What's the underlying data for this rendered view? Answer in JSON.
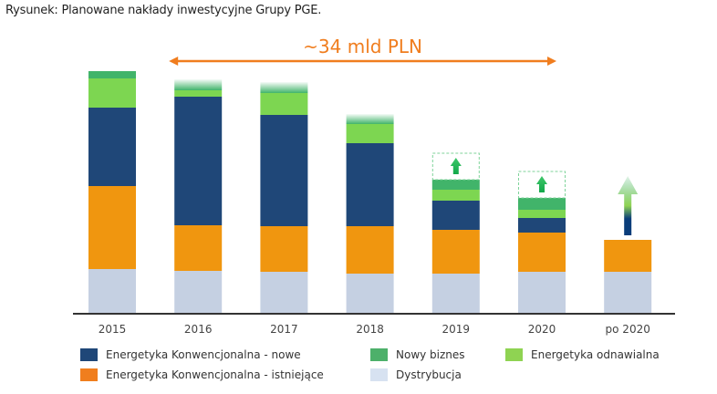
{
  "caption": "Rysunek: Planowane nakłady inwestycyjne Grupy PGE.",
  "chart_data": {
    "type": "bar",
    "stacked": true,
    "title": "Rysunek: Planowane nakłady inwestycyjne Grupy PGE.",
    "annotation": {
      "text": "~34 mld PLN",
      "spans": [
        "2016",
        "2020"
      ],
      "color": "#f07d1e"
    },
    "categories": [
      "2015",
      "2016",
      "2017",
      "2018",
      "2019",
      "2020",
      "po 2020"
    ],
    "units": "relative (no value axis shown)",
    "ylim": [
      0,
      265
    ],
    "grid": false,
    "legend_position": "bottom",
    "series": [
      {
        "name": "Dystrybucja",
        "color": "#c5d0e2",
        "values": [
          48,
          46,
          45,
          43,
          43,
          45,
          45
        ]
      },
      {
        "name": "Energetyka Konwencjonalna - istniejące",
        "color": "#f0960f",
        "values": [
          91,
          50,
          50,
          52,
          48,
          43,
          35
        ]
      },
      {
        "name": "Energetyka Konwencjonalna - nowe",
        "color": "#1f4778",
        "values": [
          86,
          141,
          122,
          91,
          32,
          16,
          0
        ]
      },
      {
        "name": "Energetyka odnawialna",
        "color": "#7dd651",
        "values": [
          32,
          7,
          24,
          21,
          12,
          9,
          0
        ]
      },
      {
        "name": "Nowy biznes",
        "color": "#41b46a",
        "values": [
          8,
          0,
          0,
          0,
          11,
          13,
          0
        ]
      }
    ],
    "uncertain_top": [
      {
        "category": "2016",
        "style": "faded-gradient",
        "amount": 12
      },
      {
        "category": "2017",
        "style": "faded-gradient",
        "amount": 12
      },
      {
        "category": "2018",
        "style": "faded-gradient",
        "amount": 11
      },
      {
        "category": "2019",
        "style": "dashed-box-up-arrow",
        "amount": 29
      },
      {
        "category": "2020",
        "style": "dashed-box-up-arrow",
        "amount": 29
      },
      {
        "category": "po 2020",
        "style": "gradient-up-arrow",
        "amount": 65
      }
    ]
  },
  "legend": [
    {
      "label": "Energetyka Konwencjonalna - nowe",
      "color": "#1f4778"
    },
    {
      "label": "Nowy biznes",
      "color": "#4db06a"
    },
    {
      "label": "Energetyka odnawialna",
      "color": "#8fd352"
    },
    {
      "label": "Energetyka Konwencjonalna - istniejące",
      "color": "#f07e1e"
    },
    {
      "label": "Dystrybucja",
      "color": "#d7e2f1"
    }
  ]
}
